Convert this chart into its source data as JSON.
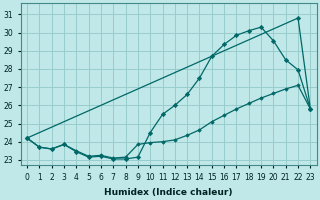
{
  "xlabel": "Humidex (Indice chaleur)",
  "bg_color": "#c0e8e8",
  "grid_color": "#98cccc",
  "line_color": "#006868",
  "xlim": [
    -0.5,
    23.5
  ],
  "ylim": [
    22.7,
    31.6
  ],
  "yticks": [
    23,
    24,
    25,
    26,
    27,
    28,
    29,
    30,
    31
  ],
  "xticks": [
    0,
    1,
    2,
    3,
    4,
    5,
    6,
    7,
    8,
    9,
    10,
    11,
    12,
    13,
    14,
    15,
    16,
    17,
    18,
    19,
    20,
    21,
    22,
    23
  ],
  "line1_x": [
    0,
    1,
    2,
    3,
    4,
    5,
    6,
    7,
    8,
    9,
    10,
    11,
    12,
    13,
    14,
    15,
    16,
    17,
    18,
    19,
    20,
    21,
    22,
    23
  ],
  "line1_y": [
    24.2,
    23.7,
    23.6,
    23.85,
    23.45,
    23.15,
    23.2,
    23.05,
    23.05,
    23.15,
    24.5,
    25.5,
    26.0,
    26.6,
    27.5,
    28.7,
    29.35,
    29.85,
    30.1,
    30.3,
    29.55,
    28.5,
    27.95,
    25.8
  ],
  "line2_x": [
    0,
    22,
    23
  ],
  "line2_y": [
    24.2,
    30.8,
    25.8
  ],
  "line3_x": [
    0,
    1,
    2,
    3,
    4,
    5,
    6,
    7,
    8,
    9,
    10,
    11,
    12,
    13,
    14,
    15,
    16,
    17,
    18,
    19,
    20,
    21,
    22,
    23
  ],
  "line3_y": [
    24.2,
    23.7,
    23.6,
    23.85,
    23.5,
    23.2,
    23.25,
    23.1,
    23.15,
    23.85,
    23.95,
    24.0,
    24.1,
    24.35,
    24.65,
    25.1,
    25.45,
    25.8,
    26.1,
    26.4,
    26.65,
    26.9,
    27.1,
    25.8
  ]
}
